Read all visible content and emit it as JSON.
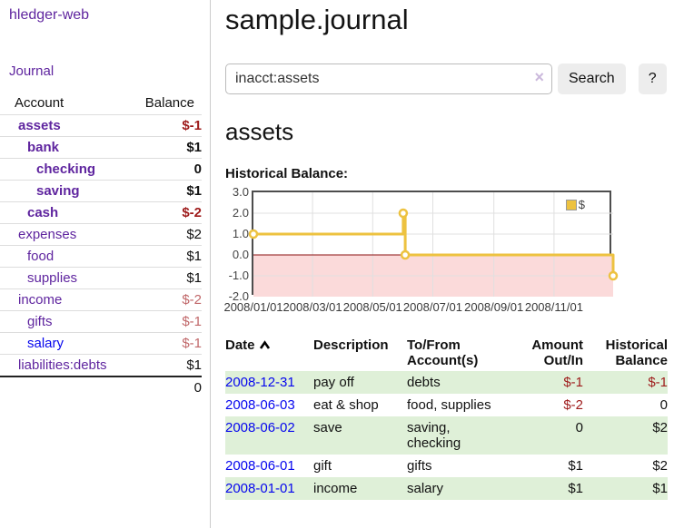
{
  "app": {
    "title": "hledger-web",
    "nav_journal": "Journal"
  },
  "sidebar": {
    "header": {
      "account": "Account",
      "balance": "Balance"
    },
    "accounts": [
      {
        "name": "assets",
        "balance": "$-1"
      },
      {
        "name": "bank",
        "balance": "$1"
      },
      {
        "name": "checking",
        "balance": "0"
      },
      {
        "name": "saving",
        "balance": "$1"
      },
      {
        "name": "cash",
        "balance": "$-2"
      },
      {
        "name": "expenses",
        "balance": "$2"
      },
      {
        "name": "food",
        "balance": "$1"
      },
      {
        "name": "supplies",
        "balance": "$1"
      },
      {
        "name": "income",
        "balance": "$-2"
      },
      {
        "name": "gifts",
        "balance": "$-1"
      },
      {
        "name": "salary",
        "balance": "$-1"
      },
      {
        "name": "liabilities:debts",
        "balance": "$1"
      }
    ],
    "total": "0"
  },
  "header": {
    "title": "sample.journal"
  },
  "search": {
    "value": "inacct:assets",
    "clear_icon": "×",
    "button": "Search",
    "help_button": "?"
  },
  "account_page": {
    "heading": "assets",
    "chart_label": "Historical Balance:"
  },
  "chart_data": {
    "type": "line",
    "title": "Historical Balance:",
    "xlabel": "",
    "ylabel": "",
    "x_range": [
      "2008/01/01",
      "2008/12/31"
    ],
    "y_range": [
      -2,
      3
    ],
    "yticks": [
      "3.0",
      "2.0",
      "1.0",
      "0.0",
      "-1.0",
      "-2.0"
    ],
    "xticks": [
      "2008/01/01",
      "2008/03/01",
      "2008/05/01",
      "2008/07/01",
      "2008/09/01",
      "2008/11/01"
    ],
    "grid": true,
    "legend_position": "top-right",
    "series": [
      {
        "name": "$",
        "color": "#EDC240",
        "step": true,
        "points": [
          [
            "2008/01/01",
            1
          ],
          [
            "2008/06/01",
            2
          ],
          [
            "2008/06/03",
            0
          ],
          [
            "2008/12/31",
            -1
          ]
        ]
      }
    ],
    "negative_fill": "#fbdada",
    "zero_line_color": "#8b1212"
  },
  "register": {
    "columns": [
      "Date",
      "Description",
      "To/From Account(s)",
      "Amount Out/In",
      "Historical Balance"
    ],
    "rows": [
      {
        "date": "2008-12-31",
        "description": "pay off",
        "accounts": "debts",
        "amount": "$-1",
        "balance": "$-1"
      },
      {
        "date": "2008-06-03",
        "description": "eat & shop",
        "accounts": "food, supplies",
        "amount": "$-2",
        "balance": "0"
      },
      {
        "date": "2008-06-02",
        "description": "save",
        "accounts": "saving, checking",
        "amount": "0",
        "balance": "$2"
      },
      {
        "date": "2008-06-01",
        "description": "gift",
        "accounts": "gifts",
        "amount": "$1",
        "balance": "$2"
      },
      {
        "date": "2008-01-01",
        "description": "income",
        "accounts": "salary",
        "amount": "$1",
        "balance": "$1"
      }
    ]
  },
  "colors": {
    "accent_purple": "#5f259f",
    "link_blue": "#0606ee",
    "negative_strong": "#9e1b1b",
    "negative_soft": "#c1686a",
    "row_green": "#dff0d8",
    "chart_line": "#EDC240",
    "chart_negative_fill": "#fbdada",
    "chart_zero_line": "#8b1212"
  }
}
